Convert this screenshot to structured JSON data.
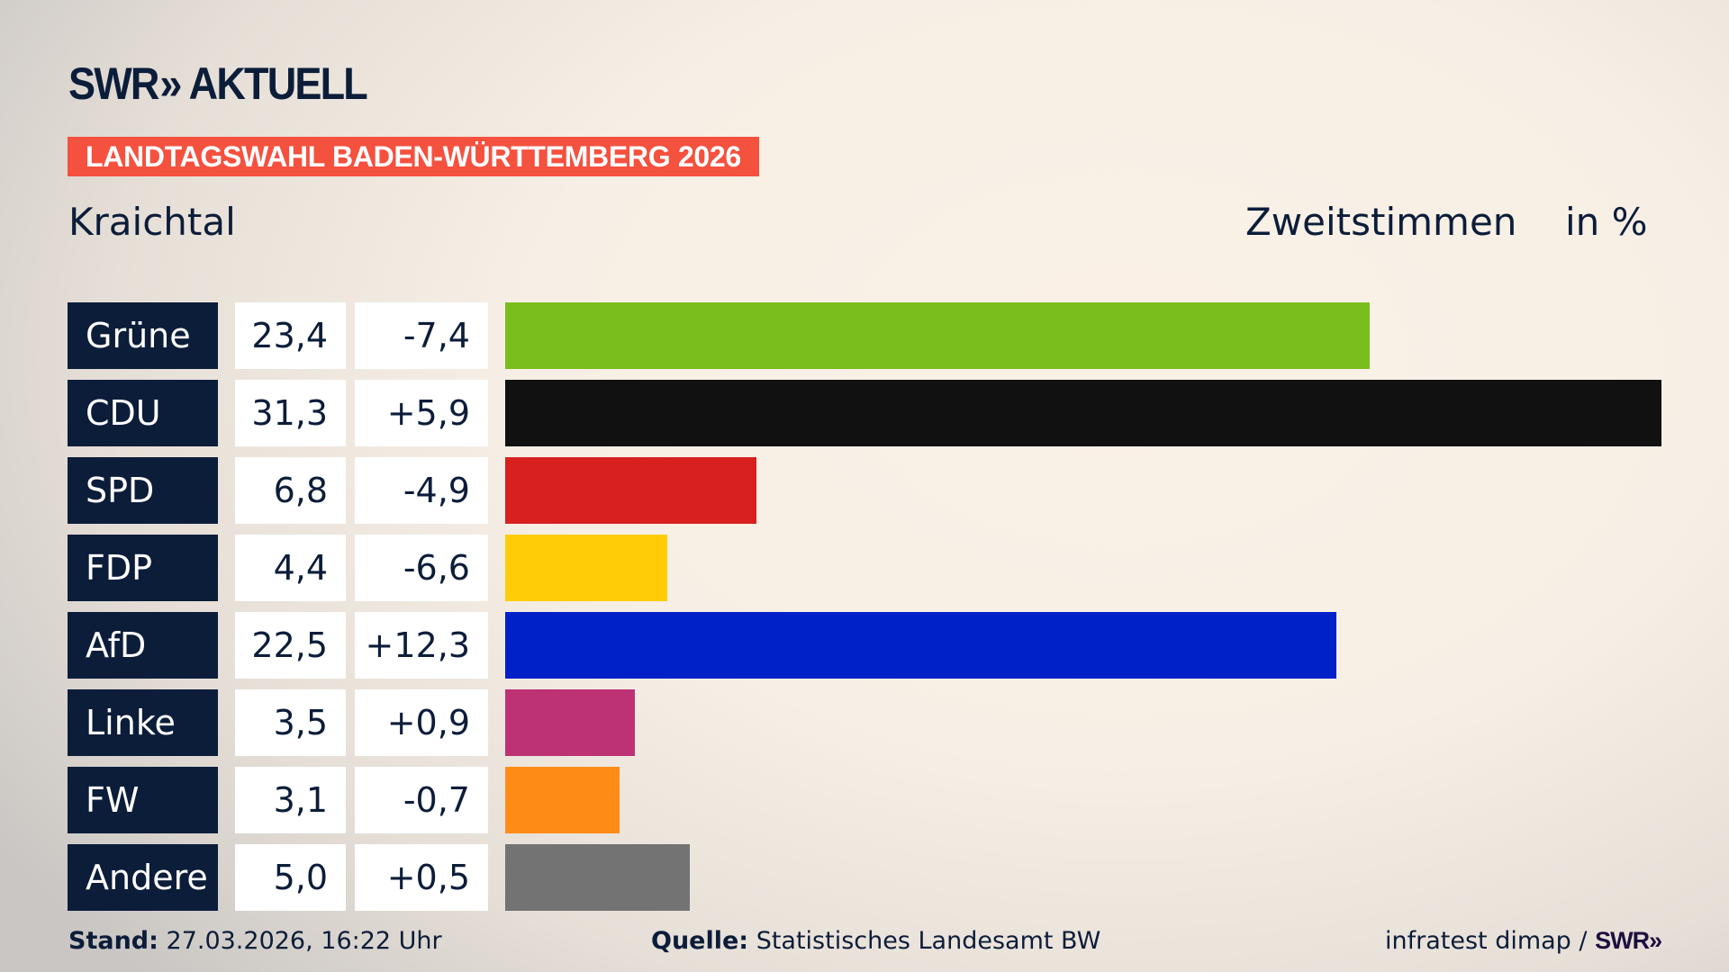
{
  "header": {
    "logo_text": "SWR AKTUELL",
    "banner": "LANDTAGSWAHL BADEN-WÜRTTEMBERG 2026",
    "region": "Kraichtal",
    "vote_type": "Zweitstimmen",
    "unit": "in %"
  },
  "chart_data": {
    "type": "bar",
    "orientation": "horizontal",
    "categories": [
      "Grüne",
      "CDU",
      "SPD",
      "FDP",
      "AfD",
      "Linke",
      "FW",
      "Andere"
    ],
    "values": [
      "23,4",
      "31,3",
      "6,8",
      "4,4",
      "22,5",
      "3,5",
      "3,1",
      "5,0"
    ],
    "numeric_values": [
      23.4,
      31.3,
      6.8,
      4.4,
      22.5,
      3.5,
      3.1,
      5.0
    ],
    "changes": [
      "-7,4",
      "+5,9",
      "-4,9",
      "-6,6",
      "+12,3",
      "+0,9",
      "-0,7",
      "+0,5"
    ],
    "colors": [
      "#7abe1e",
      "#111111",
      "#d8201e",
      "#ffcc07",
      "#0020c8",
      "#bd3175",
      "#ff8c17",
      "#737373"
    ],
    "grid": false
  },
  "footer": {
    "stand_label": "Stand:",
    "stand_value": "27.03.2026, 16:22 Uhr",
    "source_label": "Quelle:",
    "source_value": "Statistisches Landesamt BW",
    "credit": "infratest dimap /",
    "credit_logo": "SWR"
  }
}
